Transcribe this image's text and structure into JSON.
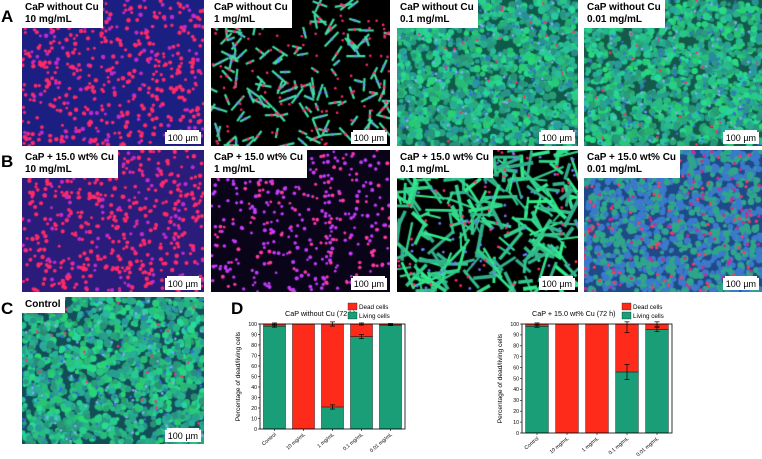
{
  "panels": {
    "a": "A",
    "b": "B",
    "c": "C",
    "d": "D"
  },
  "images": [
    {
      "id": "a1",
      "title": "CaP without Cu",
      "conc": "10 mg/mL",
      "scale": "100 µm",
      "bg": "#1c1f82",
      "cells": "red-dots"
    },
    {
      "id": "a2",
      "title": "CaP without Cu",
      "conc": "1 mg/mL",
      "scale": "100 µm",
      "bg": "#000000",
      "cells": "green-sparse"
    },
    {
      "id": "a3",
      "title": "CaP without Cu",
      "conc": "0.1 mg/mL",
      "scale": "100 µm",
      "bg": "#0f5a4a",
      "cells": "green-dense"
    },
    {
      "id": "a4",
      "title": "CaP without Cu",
      "conc": "0.01 mg/mL",
      "scale": "100 µm",
      "bg": "#135a4a",
      "cells": "green-dense"
    },
    {
      "id": "b1",
      "title": "CaP + 15.0 wt% Cu",
      "conc": "10 mg/mL",
      "scale": "100 µm",
      "bg": "#2a1c7a",
      "cells": "red-dots"
    },
    {
      "id": "b2",
      "title": "CaP + 15.0 wt% Cu",
      "conc": "1 mg/mL",
      "scale": "100 µm",
      "bg": "#0a0418",
      "cells": "magenta-sparse"
    },
    {
      "id": "b3",
      "title": "CaP + 15.0 wt% Cu",
      "conc": "0.1 mg/mL",
      "scale": "100 µm",
      "bg": "#000000",
      "cells": "green-fibers"
    },
    {
      "id": "b4",
      "title": "CaP + 15.0 wt% Cu",
      "conc": "0.01 mg/mL",
      "scale": "100 µm",
      "bg": "#1f4a88",
      "cells": "blue-dense"
    },
    {
      "id": "c1",
      "title": "Control",
      "conc": "",
      "scale": "100 µm",
      "bg": "#124e58",
      "cells": "green-dense"
    }
  ],
  "colors": {
    "dead": "#ff2b1a",
    "living": "#1a9e78",
    "errorbar": "#000000"
  },
  "chart_data": [
    {
      "type": "bar",
      "title": "CaP without Cu (72 h)",
      "ylabel": "Percentage of dead/living cells",
      "xlabel": "",
      "ylim": [
        0,
        100
      ],
      "yticks": [
        0,
        10,
        20,
        30,
        40,
        50,
        60,
        70,
        80,
        90,
        100
      ],
      "categories": [
        "Control",
        "10 mg/mL",
        "1 mg/mL",
        "0.1 mg/mL",
        "0.01 mg/mL"
      ],
      "legend": {
        "position": "top-right"
      },
      "series": [
        {
          "name": "Living cells",
          "values": [
            98,
            0,
            21,
            88,
            99
          ],
          "errors": [
            1,
            0,
            2,
            2,
            0.5
          ]
        },
        {
          "name": "Dead cells",
          "values": [
            2,
            100,
            79,
            12,
            1
          ],
          "errors": [
            1,
            0,
            2,
            1,
            0.5
          ]
        }
      ]
    },
    {
      "type": "bar",
      "title": "CaP + 15.0 wt% Cu (72 h)",
      "ylabel": "Percentage of dead/living cells",
      "xlabel": "",
      "ylim": [
        0,
        100
      ],
      "yticks": [
        0,
        10,
        20,
        30,
        40,
        50,
        60,
        70,
        80,
        90,
        100
      ],
      "categories": [
        "Control",
        "10 mg/mL",
        "1 mg/mL",
        "0.1 mg/mL",
        "0.01 mg/mL"
      ],
      "legend": {
        "position": "top-right"
      },
      "series": [
        {
          "name": "Living cells",
          "values": [
            98,
            0,
            0,
            56,
            95
          ],
          "errors": [
            1,
            0,
            0,
            7,
            2
          ]
        },
        {
          "name": "Dead cells",
          "values": [
            2,
            100,
            100,
            44,
            5
          ],
          "errors": [
            1,
            0,
            0,
            8,
            2
          ]
        }
      ]
    }
  ]
}
